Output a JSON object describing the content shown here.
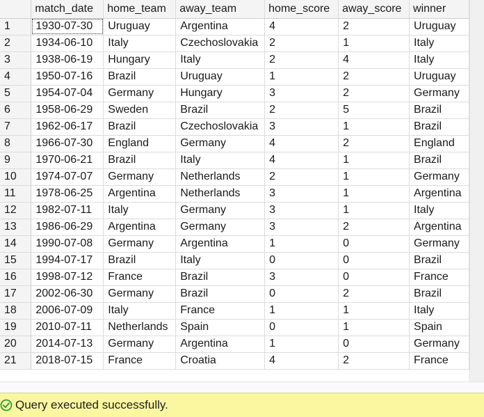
{
  "grid": {
    "columns": [
      "match_date",
      "home_team",
      "away_team",
      "home_score",
      "away_score",
      "winner"
    ],
    "rows": [
      [
        "1",
        "1930-07-30",
        "Uruguay",
        "Argentina",
        "4",
        "2",
        "Uruguay"
      ],
      [
        "2",
        "1934-06-10",
        "Italy",
        "Czechoslovakia",
        "2",
        "1",
        "Italy"
      ],
      [
        "3",
        "1938-06-19",
        "Hungary",
        "Italy",
        "2",
        "4",
        "Italy"
      ],
      [
        "4",
        "1950-07-16",
        "Brazil",
        "Uruguay",
        "1",
        "2",
        "Uruguay"
      ],
      [
        "5",
        "1954-07-04",
        "Germany",
        "Hungary",
        "3",
        "2",
        "Germany"
      ],
      [
        "6",
        "1958-06-29",
        "Sweden",
        "Brazil",
        "2",
        "5",
        "Brazil"
      ],
      [
        "7",
        "1962-06-17",
        "Brazil",
        "Czechoslovakia",
        "3",
        "1",
        "Brazil"
      ],
      [
        "8",
        "1966-07-30",
        "England",
        "Germany",
        "4",
        "2",
        "England"
      ],
      [
        "9",
        "1970-06-21",
        "Brazil",
        "Italy",
        "4",
        "1",
        "Brazil"
      ],
      [
        "10",
        "1974-07-07",
        "Germany",
        "Netherlands",
        "2",
        "1",
        "Germany"
      ],
      [
        "11",
        "1978-06-25",
        "Argentina",
        "Netherlands",
        "3",
        "1",
        "Argentina"
      ],
      [
        "12",
        "1982-07-11",
        "Italy",
        "Germany",
        "3",
        "1",
        "Italy"
      ],
      [
        "13",
        "1986-06-29",
        "Argentina",
        "Germany",
        "3",
        "2",
        "Argentina"
      ],
      [
        "14",
        "1990-07-08",
        "Germany",
        "Argentina",
        "1",
        "0",
        "Germany"
      ],
      [
        "15",
        "1994-07-17",
        "Brazil",
        "Italy",
        "0",
        "0",
        "Brazil"
      ],
      [
        "16",
        "1998-07-12",
        "France",
        "Brazil",
        "3",
        "0",
        "France"
      ],
      [
        "17",
        "2002-06-30",
        "Germany",
        "Brazil",
        "0",
        "2",
        "Brazil"
      ],
      [
        "18",
        "2006-07-09",
        "Italy",
        "France",
        "1",
        "1",
        "Italy"
      ],
      [
        "19",
        "2010-07-11",
        "Netherlands",
        "Spain",
        "0",
        "1",
        "Spain"
      ],
      [
        "20",
        "2014-07-13",
        "Germany",
        "Argentina",
        "1",
        "0",
        "Germany"
      ],
      [
        "21",
        "2018-07-15",
        "France",
        "Croatia",
        "4",
        "2",
        "France"
      ]
    ]
  },
  "status": {
    "message": "Query executed successfully.",
    "icon": "success-check-icon",
    "background": "#fbf7a0",
    "icon_color": "#2e9e3e"
  }
}
